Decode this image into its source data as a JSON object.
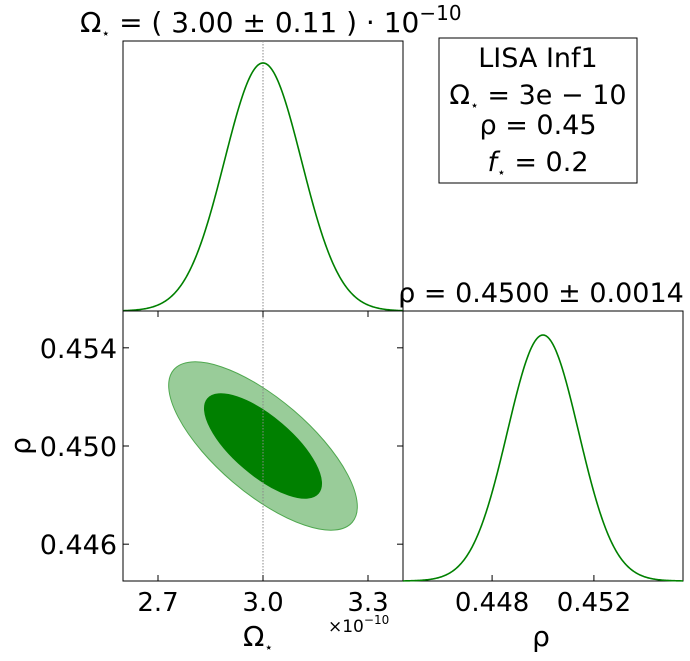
{
  "chart_data": [
    {
      "type": "line",
      "panel": "marginal-omega",
      "title": "Ω⋆ = ( 3.00 ± 0.11 ) · 10⁻¹⁰",
      "title_main": "Ω",
      "title_sub": "⋆",
      "title_rest": " = ( 3.00 ± 0.11 ) · 10",
      "title_exp": "−10",
      "distribution": {
        "mean": 3.0,
        "sigma": 0.11
      },
      "xlim": [
        2.6,
        3.4
      ],
      "truth_line": 3.0,
      "color": "#008000"
    },
    {
      "type": "line",
      "panel": "marginal-rho",
      "title": "ρ = 0.4500 ± 0.0014",
      "distribution": {
        "mean": 0.45,
        "sigma": 0.0014
      },
      "xlim": [
        0.4445,
        0.4555
      ],
      "xticks": [
        "0.448",
        "0.452"
      ],
      "xtick_values": [
        0.448,
        0.452
      ],
      "xlabel": "ρ",
      "color": "#008000"
    },
    {
      "type": "contour",
      "panel": "joint-omega-rho",
      "xlim": [
        2.6,
        3.4
      ],
      "ylim": [
        0.4445,
        0.4555
      ],
      "xticks": [
        "2.7",
        "3.0",
        "3.3"
      ],
      "xtick_values": [
        2.7,
        3.0,
        3.3
      ],
      "yticks": [
        "0.454",
        "0.450",
        "0.446"
      ],
      "ytick_values": [
        0.454,
        0.45,
        0.446
      ],
      "xlabel_main": "Ω",
      "xlabel_sub": "⋆",
      "ylabel": "ρ",
      "x_offset_text": "×10",
      "x_offset_exp": "−10",
      "center": {
        "x": 3.0,
        "y": 0.45
      },
      "sigma_x": 0.11,
      "sigma_y": 0.0014,
      "correlation": -0.72,
      "levels": [
        {
          "name": "2-sigma",
          "color": "#99cc99",
          "edge": "#4fa84f"
        },
        {
          "name": "1-sigma",
          "color": "#008000",
          "edge": "#008000"
        }
      ],
      "truth_line": 3.0
    }
  ],
  "legend_box": {
    "line1": "LISA Inf1",
    "line2_main": "Ω",
    "line2_sub": "⋆",
    "line2_rest": " = 3e − 10",
    "line3": "ρ = 0.45",
    "line4_main": "f",
    "line4_sub": "⋆",
    "line4_rest": " = 0.2"
  }
}
